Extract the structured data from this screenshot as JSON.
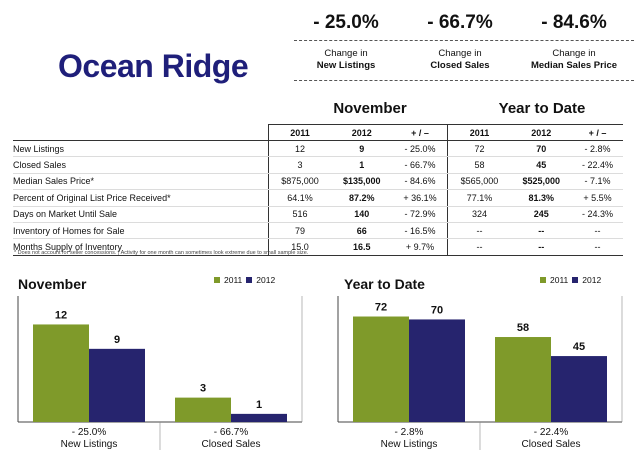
{
  "title": "Ocean Ridge",
  "kpis": [
    {
      "value": "- 25.0%",
      "line1": "Change in",
      "line2": "New Listings"
    },
    {
      "value": "- 66.7%",
      "line1": "Change in",
      "line2": "Closed Sales"
    },
    {
      "value": "- 84.6%",
      "line1": "Change in",
      "line2": "Median Sales Price"
    }
  ],
  "table": {
    "section_month": "November",
    "section_ytd": "Year to Date",
    "headers": [
      "2011",
      "2012",
      "+ / –",
      "2011",
      "2012",
      "+ / –"
    ],
    "rows": [
      {
        "label": "New Listings",
        "m2011": "12",
        "m2012": "9",
        "mchg": "- 25.0%",
        "y2011": "72",
        "y2012": "70",
        "ychg": "- 2.8%"
      },
      {
        "label": "Closed Sales",
        "m2011": "3",
        "m2012": "1",
        "mchg": "- 66.7%",
        "y2011": "58",
        "y2012": "45",
        "ychg": "- 22.4%"
      },
      {
        "label": "Median Sales Price*",
        "m2011": "$875,000",
        "m2012": "$135,000",
        "mchg": "- 84.6%",
        "y2011": "$565,000",
        "y2012": "$525,000",
        "ychg": "- 7.1%"
      },
      {
        "label": "Percent of Original List Price Received*",
        "m2011": "64.1%",
        "m2012": "87.2%",
        "mchg": "+ 36.1%",
        "y2011": "77.1%",
        "y2012": "81.3%",
        "ychg": "+ 5.5%"
      },
      {
        "label": "Days on Market Until Sale",
        "m2011": "516",
        "m2012": "140",
        "mchg": "- 72.9%",
        "y2011": "324",
        "y2012": "245",
        "ychg": "- 24.3%"
      },
      {
        "label": "Inventory of Homes for Sale",
        "m2011": "79",
        "m2012": "66",
        "mchg": "- 16.5%",
        "y2011": "--",
        "y2012": "--",
        "ychg": "--"
      },
      {
        "label": "Months Supply of Inventory",
        "m2011": "15.0",
        "m2012": "16.5",
        "mchg": "+ 9.7%",
        "y2011": "--",
        "y2012": "--",
        "ychg": "--"
      }
    ],
    "footnote": "* Does not account for seller concessions.  |  Activity for one month can sometimes look extreme due to small sample size."
  },
  "colors": {
    "c2011": "#7f9a2a",
    "c2012": "#26246e",
    "title": "#1f1f7a"
  },
  "chart_data": [
    {
      "type": "bar",
      "title": "November",
      "categories": [
        "New Listings",
        "Closed Sales"
      ],
      "category_changes": [
        "- 25.0%",
        "- 66.7%"
      ],
      "series": [
        {
          "name": "2011",
          "values": [
            12,
            3
          ]
        },
        {
          "name": "2012",
          "values": [
            9,
            1
          ]
        }
      ],
      "ylim": [
        0,
        15.5
      ],
      "legend": "top-right"
    },
    {
      "type": "bar",
      "title": "Year to Date",
      "categories": [
        "New Listings",
        "Closed Sales"
      ],
      "category_changes": [
        "- 2.8%",
        "- 22.4%"
      ],
      "series": [
        {
          "name": "2011",
          "values": [
            72,
            58
          ]
        },
        {
          "name": "2012",
          "values": [
            70,
            45
          ]
        }
      ],
      "ylim": [
        0,
        86
      ],
      "legend": "top-right"
    }
  ]
}
